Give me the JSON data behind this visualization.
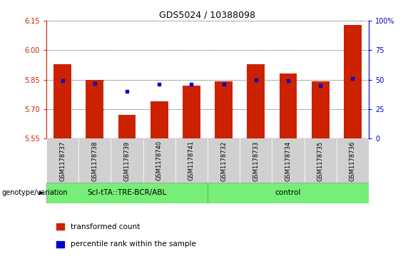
{
  "title": "GDS5024 / 10388098",
  "samples": [
    "GSM1178737",
    "GSM1178738",
    "GSM1178739",
    "GSM1178740",
    "GSM1178741",
    "GSM1178732",
    "GSM1178733",
    "GSM1178734",
    "GSM1178735",
    "GSM1178736"
  ],
  "red_values": [
    5.93,
    5.85,
    5.67,
    5.74,
    5.82,
    5.84,
    5.93,
    5.88,
    5.84,
    6.13
  ],
  "blue_values": [
    49,
    47,
    40,
    46,
    46,
    46,
    50,
    49,
    45,
    51
  ],
  "y_min": 5.55,
  "y_max": 6.15,
  "y_ticks": [
    5.55,
    5.7,
    5.85,
    6.0,
    6.15
  ],
  "y2_ticks": [
    0,
    25,
    50,
    75,
    100
  ],
  "bar_color": "#cc2200",
  "dot_color": "#0000cc",
  "sample_bg_color": "#d0d0d0",
  "group1_label": "Scl-tTA::TRE-BCR/ABL",
  "group2_label": "control",
  "group_color": "#77ee77",
  "genotype_label": "genotype/variation",
  "legend_red": "transformed count",
  "legend_blue": "percentile rank within the sample",
  "group1_indices": [
    0,
    1,
    2,
    3,
    4
  ],
  "group2_indices": [
    5,
    6,
    7,
    8,
    9
  ]
}
